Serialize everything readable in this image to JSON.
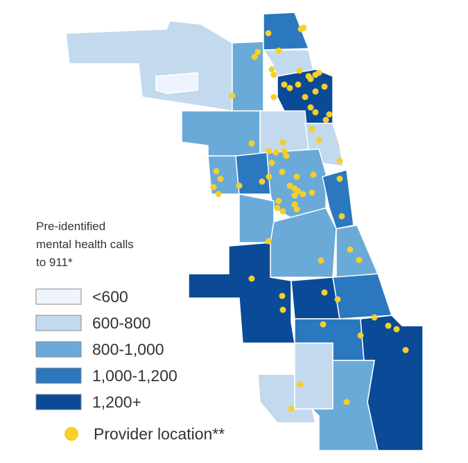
{
  "legend": {
    "title_lines": [
      "Pre-identified",
      "mental health calls",
      "to 911*"
    ],
    "items": [
      {
        "label": "<600",
        "color": "#eef4fd"
      },
      {
        "label": "600-800",
        "color": "#c3d9ee"
      },
      {
        "label": "800-1,000",
        "color": "#6aaad8"
      },
      {
        "label": "1,000-1,200",
        "color": "#2b78be"
      },
      {
        "label": "1,200+",
        "color": "#0a4a96"
      }
    ],
    "provider": {
      "label": "Provider location**",
      "color": "#f5cf2a"
    }
  }
}
